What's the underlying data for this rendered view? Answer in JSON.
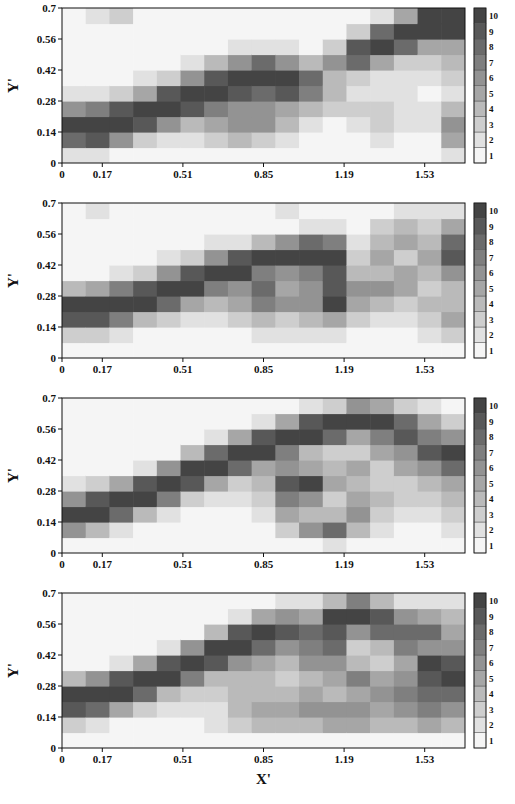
{
  "chart_data": [
    {
      "type": "heatmap",
      "y_label": "Y'",
      "xlim": [
        0,
        1.7
      ],
      "ylim": [
        0,
        0.7
      ],
      "xticks": [
        0,
        0.17,
        0.51,
        0.85,
        1.19,
        1.53
      ],
      "yticks": [
        0,
        0.14,
        0.28,
        0.42,
        0.56,
        0.7
      ],
      "color": "#3a3a3a",
      "colorbar_range": [
        0.5,
        10.5
      ],
      "colorbar_ticks": [
        1,
        2,
        3,
        4,
        5,
        6,
        7,
        8,
        9,
        10
      ],
      "x_bins": [
        0,
        0.1,
        0.2,
        0.3,
        0.4,
        0.5,
        0.6,
        0.7,
        0.8,
        0.9,
        1.0,
        1.1,
        1.2,
        1.3,
        1.4,
        1.5,
        1.6,
        1.7
      ],
      "y_bins": [
        0,
        0.07,
        0.14,
        0.21,
        0.28,
        0.35,
        0.42,
        0.49,
        0.56,
        0.63,
        0.7
      ],
      "cells": [
        [
          2,
          8,
          10,
          6,
          2,
          1,
          1,
          1,
          1,
          1
        ],
        [
          2,
          9,
          10,
          7,
          2,
          1,
          1,
          1,
          1,
          2
        ],
        [
          1,
          6,
          10,
          9,
          3,
          1,
          1,
          1,
          1,
          3
        ],
        [
          1,
          3,
          9,
          10,
          5,
          2,
          1,
          1,
          1,
          1
        ],
        [
          1,
          2,
          6,
          10,
          9,
          3,
          1,
          1,
          1,
          1
        ],
        [
          1,
          2,
          4,
          9,
          10,
          6,
          2,
          1,
          1,
          1
        ],
        [
          1,
          3,
          5,
          7,
          10,
          9,
          4,
          1,
          1,
          1
        ],
        [
          1,
          4,
          6,
          6,
          9,
          10,
          6,
          2,
          1,
          1
        ],
        [
          1,
          3,
          6,
          6,
          8,
          10,
          8,
          2,
          1,
          1
        ],
        [
          1,
          2,
          4,
          5,
          9,
          10,
          6,
          2,
          1,
          1
        ],
        [
          1,
          1,
          2,
          4,
          7,
          8,
          4,
          1,
          1,
          1
        ],
        [
          1,
          1,
          1,
          3,
          4,
          4,
          6,
          3,
          1,
          1
        ],
        [
          1,
          1,
          2,
          3,
          2,
          3,
          8,
          9,
          3,
          1
        ],
        [
          1,
          2,
          3,
          3,
          2,
          2,
          5,
          10,
          8,
          2
        ],
        [
          1,
          1,
          2,
          2,
          2,
          2,
          3,
          8,
          10,
          5
        ],
        [
          1,
          1,
          2,
          2,
          1,
          2,
          3,
          5,
          10,
          10
        ],
        [
          2,
          5,
          6,
          4,
          2,
          3,
          4,
          5,
          10,
          10
        ]
      ]
    },
    {
      "type": "heatmap",
      "y_label": "Y'",
      "xlim": [
        0,
        1.7
      ],
      "ylim": [
        0,
        0.7
      ],
      "xticks": [
        0,
        0.17,
        0.51,
        0.85,
        1.19,
        1.53
      ],
      "yticks": [
        0,
        0.14,
        0.28,
        0.42,
        0.56,
        0.7
      ],
      "color": "#3a3a3a",
      "colorbar_range": [
        0.5,
        10.5
      ],
      "colorbar_ticks": [
        1,
        2,
        3,
        4,
        5,
        6,
        7,
        8,
        9,
        10
      ],
      "x_bins": [
        0,
        0.1,
        0.2,
        0.3,
        0.4,
        0.5,
        0.6,
        0.7,
        0.8,
        0.9,
        1.0,
        1.1,
        1.2,
        1.3,
        1.4,
        1.5,
        1.6,
        1.7
      ],
      "y_bins": [
        0,
        0.07,
        0.14,
        0.21,
        0.28,
        0.35,
        0.42,
        0.49,
        0.56,
        0.63,
        0.7
      ],
      "cells": [
        [
          1,
          3,
          9,
          10,
          4,
          1,
          1,
          1,
          1,
          1
        ],
        [
          1,
          3,
          9,
          10,
          5,
          1,
          1,
          1,
          1,
          2
        ],
        [
          1,
          2,
          7,
          10,
          7,
          2,
          1,
          1,
          1,
          1
        ],
        [
          1,
          1,
          4,
          10,
          9,
          3,
          1,
          1,
          1,
          1
        ],
        [
          1,
          1,
          3,
          8,
          10,
          6,
          2,
          1,
          1,
          1
        ],
        [
          1,
          1,
          2,
          5,
          10,
          9,
          3,
          1,
          1,
          1
        ],
        [
          1,
          1,
          2,
          4,
          7,
          10,
          6,
          2,
          1,
          1
        ],
        [
          1,
          1,
          3,
          5,
          6,
          10,
          9,
          2,
          1,
          1
        ],
        [
          1,
          2,
          4,
          7,
          8,
          7,
          10,
          4,
          1,
          1
        ],
        [
          1,
          2,
          3,
          6,
          5,
          6,
          10,
          6,
          1,
          2
        ],
        [
          1,
          2,
          4,
          6,
          6,
          7,
          10,
          8,
          2,
          1
        ],
        [
          1,
          2,
          5,
          10,
          9,
          9,
          10,
          7,
          2,
          1
        ],
        [
          1,
          1,
          3,
          5,
          6,
          4,
          3,
          2,
          1,
          1
        ],
        [
          1,
          1,
          2,
          4,
          6,
          4,
          5,
          4,
          3,
          1
        ],
        [
          1,
          1,
          2,
          3,
          5,
          5,
          3,
          5,
          4,
          2
        ],
        [
          1,
          2,
          3,
          4,
          3,
          4,
          5,
          4,
          3,
          2
        ],
        [
          1,
          3,
          5,
          4,
          4,
          6,
          9,
          8,
          5,
          2
        ]
      ]
    },
    {
      "type": "heatmap",
      "y_label": "Y'",
      "xlim": [
        0,
        1.7
      ],
      "ylim": [
        0,
        0.7
      ],
      "xticks": [
        0,
        0.17,
        0.51,
        0.85,
        1.19,
        1.53
      ],
      "yticks": [
        0,
        0.14,
        0.28,
        0.42,
        0.56,
        0.7
      ],
      "color": "#3a3a3a",
      "colorbar_range": [
        0.5,
        10.5
      ],
      "colorbar_ticks": [
        1,
        2,
        3,
        4,
        5,
        6,
        7,
        8,
        9,
        10
      ],
      "x_bins": [
        0,
        0.1,
        0.2,
        0.3,
        0.4,
        0.5,
        0.6,
        0.7,
        0.8,
        0.9,
        1.0,
        1.1,
        1.2,
        1.3,
        1.4,
        1.5,
        1.6,
        1.7
      ],
      "y_bins": [
        0,
        0.07,
        0.14,
        0.21,
        0.28,
        0.35,
        0.42,
        0.49,
        0.56,
        0.63,
        0.7
      ],
      "cells": [
        [
          1,
          6,
          10,
          6,
          2,
          1,
          1,
          1,
          1,
          1
        ],
        [
          1,
          4,
          10,
          9,
          3,
          1,
          1,
          1,
          1,
          1
        ],
        [
          1,
          2,
          8,
          10,
          5,
          1,
          1,
          1,
          1,
          1
        ],
        [
          1,
          1,
          4,
          10,
          9,
          2,
          1,
          1,
          1,
          1
        ],
        [
          1,
          1,
          2,
          7,
          10,
          6,
          1,
          1,
          1,
          1
        ],
        [
          1,
          1,
          1,
          3,
          9,
          10,
          4,
          1,
          1,
          1
        ],
        [
          1,
          1,
          1,
          2,
          5,
          10,
          8,
          2,
          1,
          1
        ],
        [
          1,
          1,
          1,
          2,
          3,
          8,
          10,
          5,
          1,
          1
        ],
        [
          1,
          1,
          2,
          3,
          4,
          5,
          10,
          9,
          2,
          1
        ],
        [
          1,
          3,
          5,
          7,
          9,
          6,
          7,
          10,
          5,
          1
        ],
        [
          1,
          6,
          4,
          6,
          10,
          5,
          4,
          10,
          9,
          2
        ],
        [
          2,
          8,
          4,
          3,
          5,
          4,
          3,
          8,
          10,
          3
        ],
        [
          1,
          4,
          6,
          5,
          4,
          5,
          3,
          5,
          10,
          6
        ],
        [
          1,
          2,
          3,
          4,
          3,
          3,
          5,
          7,
          10,
          5
        ],
        [
          1,
          1,
          2,
          3,
          3,
          5,
          6,
          9,
          8,
          3
        ],
        [
          1,
          1,
          2,
          3,
          4,
          6,
          9,
          7,
          5,
          2
        ],
        [
          1,
          2,
          3,
          4,
          5,
          8,
          10,
          6,
          3,
          1
        ]
      ]
    },
    {
      "type": "heatmap",
      "y_label": "Y'",
      "x_label": "X'",
      "xlim": [
        0,
        1.7
      ],
      "ylim": [
        0,
        0.7
      ],
      "xticks": [
        0,
        0.17,
        0.51,
        0.85,
        1.19,
        1.53
      ],
      "yticks": [
        0,
        0.14,
        0.28,
        0.42,
        0.56,
        0.7
      ],
      "color": "#3a3a3a",
      "colorbar_range": [
        0.5,
        10.5
      ],
      "colorbar_ticks": [
        1,
        2,
        3,
        4,
        5,
        6,
        7,
        8,
        9,
        10
      ],
      "x_bins": [
        0,
        0.1,
        0.2,
        0.3,
        0.4,
        0.5,
        0.6,
        0.7,
        0.8,
        0.9,
        1.0,
        1.1,
        1.2,
        1.3,
        1.4,
        1.5,
        1.6,
        1.7
      ],
      "y_bins": [
        0,
        0.07,
        0.14,
        0.21,
        0.28,
        0.35,
        0.42,
        0.49,
        0.56,
        0.63,
        0.7
      ],
      "cells": [
        [
          1,
          3,
          9,
          10,
          4,
          1,
          1,
          1,
          1,
          1
        ],
        [
          1,
          2,
          8,
          10,
          6,
          1,
          1,
          1,
          1,
          1
        ],
        [
          1,
          1,
          5,
          10,
          9,
          2,
          1,
          1,
          1,
          1
        ],
        [
          1,
          1,
          3,
          8,
          10,
          5,
          1,
          1,
          1,
          1
        ],
        [
          1,
          1,
          2,
          4,
          10,
          9,
          2,
          1,
          1,
          1
        ],
        [
          1,
          1,
          2,
          3,
          7,
          10,
          6,
          1,
          1,
          1
        ],
        [
          1,
          2,
          2,
          3,
          4,
          9,
          10,
          4,
          1,
          1
        ],
        [
          1,
          3,
          4,
          4,
          4,
          6,
          10,
          9,
          2,
          1
        ],
        [
          1,
          4,
          5,
          4,
          4,
          5,
          8,
          10,
          5,
          1
        ],
        [
          1,
          4,
          5,
          4,
          3,
          4,
          6,
          9,
          6,
          2
        ],
        [
          1,
          4,
          6,
          5,
          4,
          6,
          7,
          8,
          5,
          2
        ],
        [
          1,
          5,
          6,
          4,
          5,
          6,
          8,
          9,
          10,
          4
        ],
        [
          1,
          5,
          6,
          5,
          7,
          4,
          3,
          6,
          10,
          7
        ],
        [
          1,
          4,
          5,
          6,
          5,
          3,
          4,
          8,
          9,
          4
        ],
        [
          1,
          4,
          6,
          7,
          6,
          5,
          7,
          8,
          6,
          2
        ],
        [
          1,
          5,
          7,
          8,
          9,
          10,
          6,
          8,
          5,
          2
        ],
        [
          1,
          4,
          6,
          8,
          10,
          9,
          6,
          5,
          4,
          2
        ]
      ]
    }
  ]
}
